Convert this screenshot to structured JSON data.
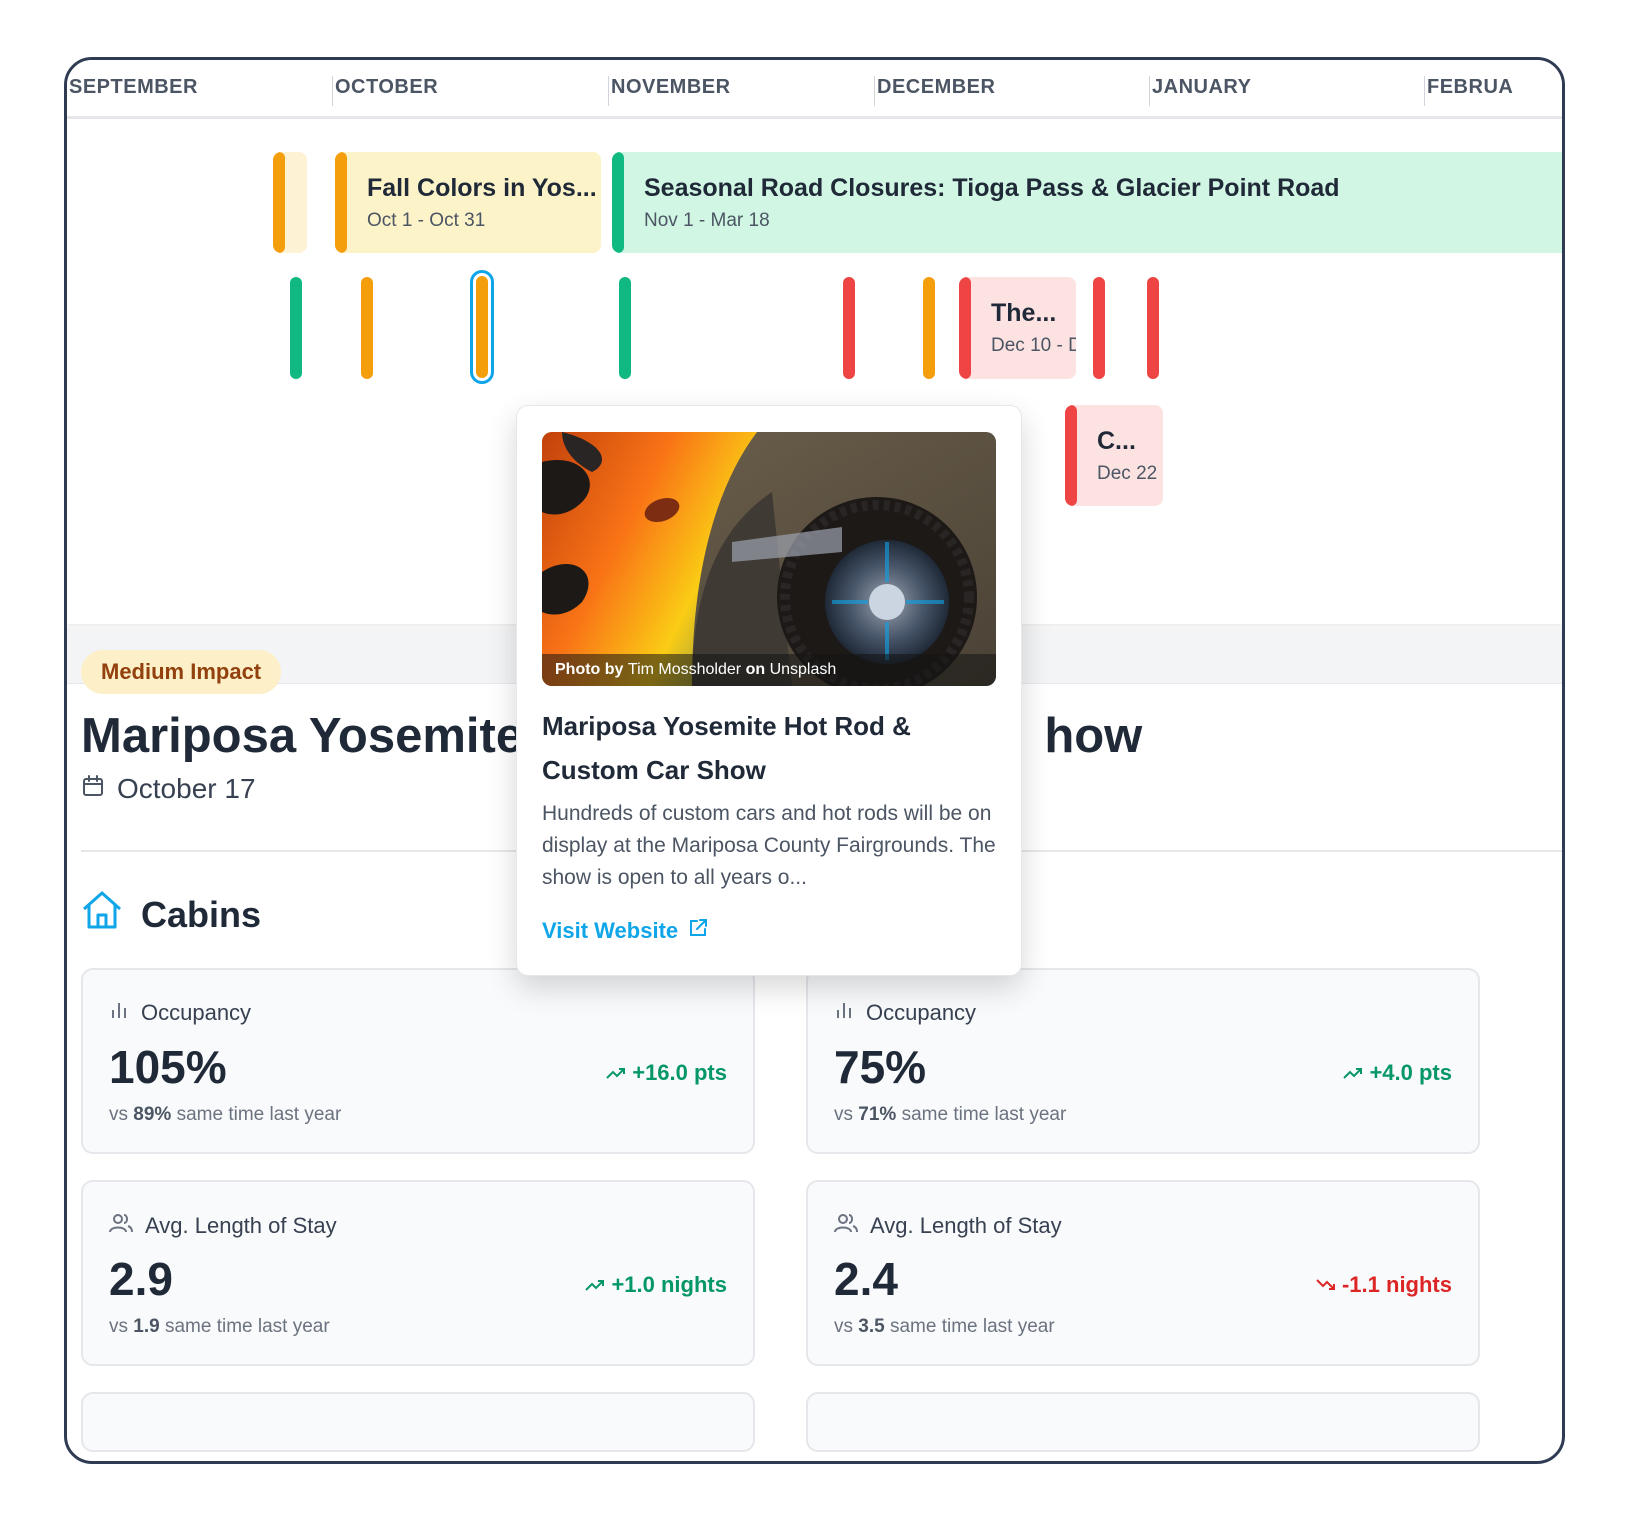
{
  "timeline": {
    "months": [
      "SEPTEMBER",
      "OCTOBER",
      "NOVEMBER",
      "DECEMBER",
      "JANUARY",
      "FEBRUA"
    ],
    "events": {
      "fall_colors": {
        "title": "Fall Colors in Yos...",
        "dates": "Oct 1 - Oct 31"
      },
      "road_closures": {
        "title": "Seasonal Road Closures: Tioga Pass & Glacier Point Road",
        "dates": "Nov 1 - Mar 18"
      },
      "the_event": {
        "title": "The...",
        "dates": "Dec 10 - D"
      },
      "c_event": {
        "title": "C...",
        "dates": "Dec 22 -"
      }
    },
    "colors": {
      "orange": "#f59e0b",
      "green": "#10b981",
      "red": "#ef4444",
      "selected_ring": "#0ea5e9"
    }
  },
  "detail": {
    "impact": "Medium Impact",
    "title": "Mariposa Yosemite Hot Rod & Custom Car Show",
    "title_left": "Mariposa Yosemite I",
    "title_right": "how",
    "date": "October 17",
    "section": "Cabins"
  },
  "cards": [
    {
      "label": "Occupancy",
      "value": "105%",
      "sub_prefix": "vs",
      "sub_value": "89%",
      "sub_suffix": "same time last year",
      "delta": "+16.0 pts",
      "trend": "up"
    },
    {
      "label": "Occupancy",
      "value": "75%",
      "sub_prefix": "vs",
      "sub_value": "71%",
      "sub_suffix": "same time last year",
      "delta": "+4.0 pts",
      "trend": "up"
    },
    {
      "label": "Avg. Length of Stay",
      "value": "2.9",
      "sub_prefix": "vs",
      "sub_value": "1.9",
      "sub_suffix": "same time last year",
      "delta": "+1.0 nights",
      "trend": "up"
    },
    {
      "label": "Avg. Length of Stay",
      "value": "2.4",
      "sub_prefix": "vs",
      "sub_value": "3.5",
      "sub_suffix": "same time last year",
      "delta": "-1.1 nights",
      "trend": "down"
    }
  ],
  "popup": {
    "credit_prefix": "Photo by",
    "credit_author": "Tim Mossholder",
    "credit_on": "on",
    "credit_site": "Unsplash",
    "title": "Mariposa Yosemite Hot Rod & Custom Car Show",
    "description": "Hundreds of custom cars and hot rods will be on display at the Mariposa County Fairgrounds. The show is open to all years o...",
    "link": "Visit Website"
  }
}
